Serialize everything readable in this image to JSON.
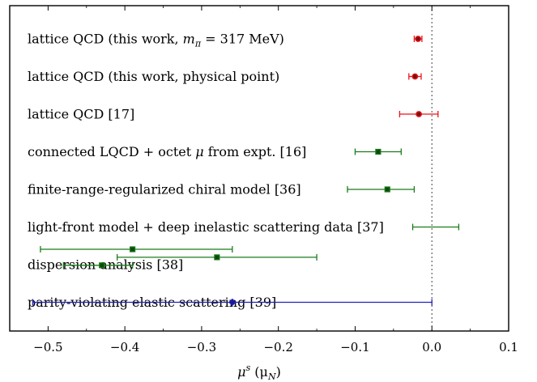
{
  "chart_data": {
    "type": "scatter",
    "xlabel": "μ^s (μ_N)",
    "xlabel_main": "μ",
    "xlabel_sup": "s",
    "xlabel_unit_open": " (μ",
    "xlabel_unit_sub": "N",
    "xlabel_unit_close": ")",
    "xlim": [
      -0.55,
      0.1
    ],
    "xticks": [
      -0.5,
      -0.4,
      -0.3,
      -0.2,
      -0.1,
      0.0,
      0.1
    ],
    "xtick_labels": [
      "−0.5",
      "−0.4",
      "−0.3",
      "−0.2",
      "−0.1",
      "0.0",
      "0.1"
    ],
    "reference_line_x": 0.0,
    "grid": false,
    "series": [
      {
        "label": "lattice QCD (this work, m_π = 317 MeV)",
        "label_text": "lattice QCD (this work, ",
        "label_math": "m",
        "label_math_sub": "π",
        "label_math_rest": " = 317 MeV)",
        "color": "#e8161c",
        "marker": "circle",
        "points": [
          {
            "x": -0.018,
            "err_low": 0.005,
            "err_high": 0.005
          }
        ]
      },
      {
        "label": "lattice QCD (this work, physical point)",
        "color": "#e8161c",
        "marker": "circle",
        "points": [
          {
            "x": -0.022,
            "err_low": 0.008,
            "err_high": 0.008
          }
        ]
      },
      {
        "label": "lattice QCD [17]",
        "color": "#e8161c",
        "marker": "circle",
        "points": [
          {
            "x": -0.017,
            "err_low": 0.025,
            "err_high": 0.025
          }
        ]
      },
      {
        "label": "connected LQCD + octet μ from expt. [16]",
        "label_text": "connected LQCD + octet ",
        "label_math": "μ",
        "label_math_rest": " from expt. [16]",
        "color": "#1a7c1a",
        "marker": "square",
        "points": [
          {
            "x": -0.07,
            "err_low": 0.03,
            "err_high": 0.03
          }
        ]
      },
      {
        "label": "finite-range-regularized chiral model [36]",
        "color": "#1a7c1a",
        "marker": "square",
        "points": [
          {
            "x": -0.058,
            "err_low": 0.052,
            "err_high": 0.035
          }
        ]
      },
      {
        "label": "light-front model + deep inelastic scattering data [37]",
        "color": "#1a7c1a",
        "marker": "none",
        "points": [
          {
            "x": 0.005,
            "err_low": 0.03,
            "err_high": 0.03
          }
        ]
      },
      {
        "label": "dispersion analysis [38]",
        "color": "#1a7c1a",
        "marker": "square",
        "points": [
          {
            "x": -0.39,
            "err_low": 0.12,
            "err_high": 0.13,
            "row_offset": -1
          },
          {
            "x": -0.28,
            "err_low": 0.13,
            "err_high": 0.13,
            "row_offset": -0.55
          },
          {
            "x": -0.43,
            "err_low": 0.05,
            "err_high": 0.04,
            "row_offset": -0.1
          }
        ]
      },
      {
        "label": "parity-violating elastic scattering [39]",
        "color": "#2222bb",
        "marker": "diamond",
        "points": [
          {
            "x": -0.26,
            "err_low": 0.26,
            "err_high": 0.26
          }
        ]
      }
    ]
  }
}
